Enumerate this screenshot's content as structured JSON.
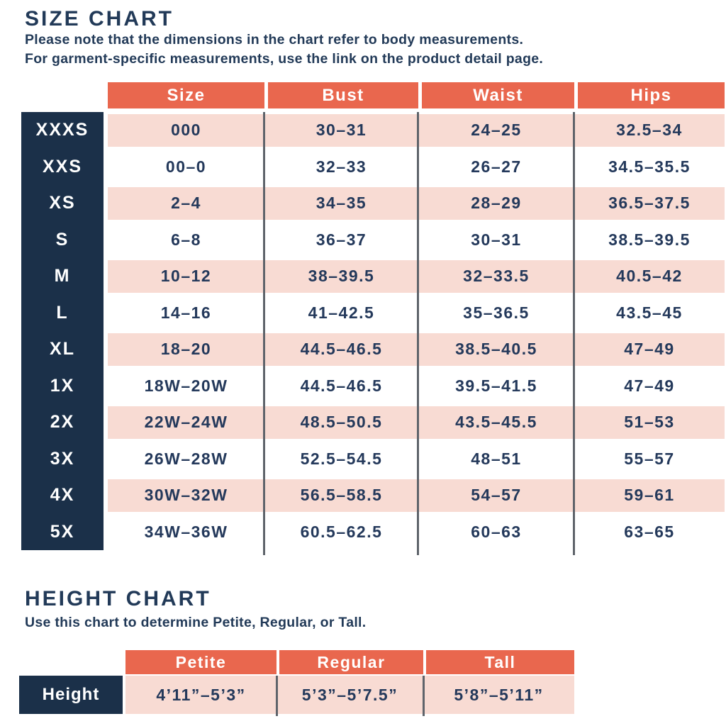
{
  "size_chart": {
    "title": "SIZE CHART",
    "note_line1": "Please note that the dimensions in the chart refer to body measurements.",
    "note_line2": "For garment-specific measurements, use the link on the product detail page.",
    "columns": {
      "size": "Size",
      "bust": "Bust",
      "waist": "Waist",
      "hips": "Hips"
    },
    "rows": [
      {
        "label": "XXXS",
        "size": "000",
        "bust": "30–31",
        "waist": "24–25",
        "hips": "32.5–34"
      },
      {
        "label": "XXS",
        "size": "00–0",
        "bust": "32–33",
        "waist": "26–27",
        "hips": "34.5–35.5"
      },
      {
        "label": "XS",
        "size": "2–4",
        "bust": "34–35",
        "waist": "28–29",
        "hips": "36.5–37.5"
      },
      {
        "label": "S",
        "size": "6–8",
        "bust": "36–37",
        "waist": "30–31",
        "hips": "38.5–39.5"
      },
      {
        "label": "M",
        "size": "10–12",
        "bust": "38–39.5",
        "waist": "32–33.5",
        "hips": "40.5–42"
      },
      {
        "label": "L",
        "size": "14–16",
        "bust": "41–42.5",
        "waist": "35–36.5",
        "hips": "43.5–45"
      },
      {
        "label": "XL",
        "size": "18–20",
        "bust": "44.5–46.5",
        "waist": "38.5–40.5",
        "hips": "47–49"
      },
      {
        "label": "1X",
        "size": "18W–20W",
        "bust": "44.5–46.5",
        "waist": "39.5–41.5",
        "hips": "47–49"
      },
      {
        "label": "2X",
        "size": "22W–24W",
        "bust": "48.5–50.5",
        "waist": "43.5–45.5",
        "hips": "51–53"
      },
      {
        "label": "3X",
        "size": "26W–28W",
        "bust": "52.5–54.5",
        "waist": "48–51",
        "hips": "55–57"
      },
      {
        "label": "4X",
        "size": "30W–32W",
        "bust": "56.5–58.5",
        "waist": "54–57",
        "hips": "59–61"
      },
      {
        "label": "5X",
        "size": "34W–36W",
        "bust": "60.5–62.5",
        "waist": "60–63",
        "hips": "63–65"
      }
    ]
  },
  "height_chart": {
    "title": "HEIGHT CHART",
    "note": "Use this chart to determine Petite, Regular, or Tall.",
    "columns": {
      "petite": "Petite",
      "regular": "Regular",
      "tall": "Tall"
    },
    "row_label": "Height",
    "values": {
      "petite": "4’11”–5’3”",
      "regular": "5’3”–5’7.5”",
      "tall": "5’8”–5’11”"
    }
  },
  "colors": {
    "coral_header": "#E9674E",
    "pink_row": "#F8DBD3",
    "navy_label": "#1B3049",
    "text_navy": "#24395B",
    "divider_gray": "#5F646B"
  }
}
